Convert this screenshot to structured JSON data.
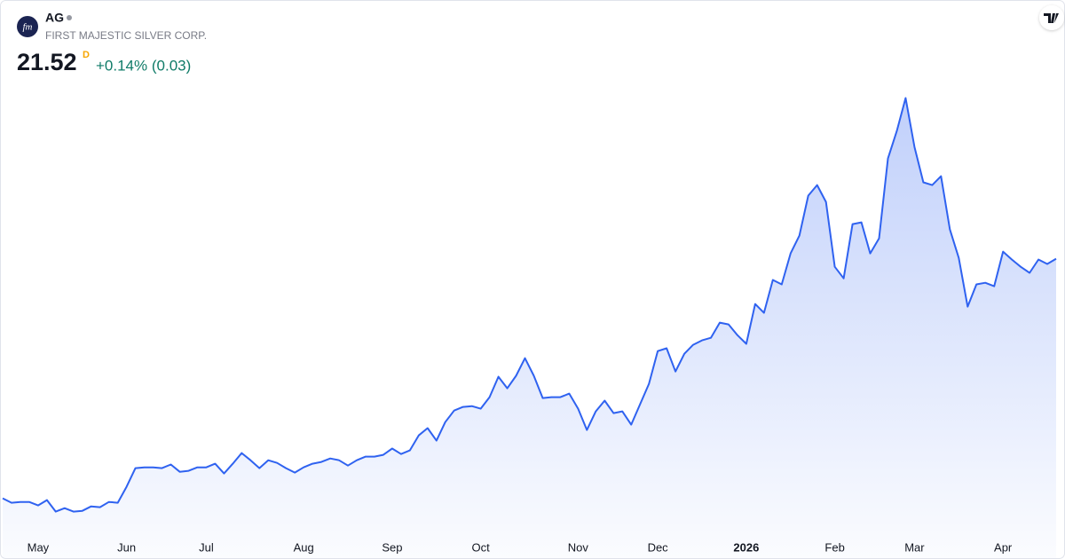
{
  "chart_data": {
    "type": "area",
    "title": "AG",
    "subtitle": "FIRST MAJESTIC SILVER CORP.",
    "logo": "fm",
    "last_price": 21.52,
    "interval": "D",
    "change": "+0.14% (0.03)",
    "color": "#2f62f0",
    "categories": [
      null,
      null,
      null,
      null,
      "May",
      null,
      null,
      null,
      null,
      null,
      null,
      null,
      null,
      null,
      "Jun",
      null,
      null,
      null,
      null,
      null,
      null,
      null,
      null,
      "Jul",
      null,
      null,
      null,
      null,
      null,
      null,
      null,
      null,
      null,
      null,
      "Aug",
      null,
      null,
      null,
      null,
      null,
      null,
      null,
      null,
      null,
      "Sep",
      null,
      null,
      null,
      null,
      null,
      null,
      null,
      null,
      null,
      "Oct",
      null,
      null,
      null,
      null,
      null,
      null,
      null,
      null,
      null,
      null,
      "Nov",
      null,
      null,
      null,
      null,
      null,
      null,
      null,
      null,
      "Dec",
      null,
      null,
      null,
      null,
      null,
      null,
      null,
      null,
      null,
      "2026",
      null,
      null,
      null,
      null,
      null,
      null,
      null,
      null,
      null,
      "Feb",
      null,
      null,
      null,
      null,
      null,
      null,
      null,
      null,
      "Mar",
      null,
      null,
      null,
      null,
      null,
      null,
      null,
      null,
      null,
      "Apr",
      null,
      null,
      null,
      null,
      null,
      null
    ],
    "values": [
      6.97,
      6.7,
      6.75,
      6.75,
      6.54,
      6.86,
      6.16,
      6.37,
      6.16,
      6.21,
      6.48,
      6.43,
      6.75,
      6.7,
      7.67,
      8.8,
      8.85,
      8.85,
      8.8,
      9.02,
      8.58,
      8.64,
      8.85,
      8.85,
      9.07,
      8.48,
      9.07,
      9.72,
      9.28,
      8.8,
      9.28,
      9.12,
      8.8,
      8.53,
      8.85,
      9.07,
      9.18,
      9.39,
      9.28,
      8.96,
      9.28,
      9.5,
      9.5,
      9.61,
      9.99,
      9.66,
      9.88,
      10.79,
      11.23,
      10.47,
      11.6,
      12.3,
      12.52,
      12.57,
      12.41,
      13.11,
      14.35,
      13.65,
      14.41,
      15.48,
      14.41,
      13.06,
      13.11,
      13.11,
      13.33,
      12.41,
      11.12,
      12.25,
      12.9,
      12.14,
      12.25,
      11.44,
      12.68,
      13.92,
      15.91,
      16.08,
      14.67,
      15.75,
      16.29,
      16.56,
      16.72,
      17.64,
      17.53,
      16.88,
      16.35,
      18.77,
      18.23,
      20.23,
      19.96,
      21.84,
      22.92,
      25.35,
      25.99,
      24.97,
      21.03,
      20.33,
      23.62,
      23.73,
      21.84,
      22.76,
      27.61,
      29.28,
      31.28,
      28.31,
      26.16,
      25.99,
      26.53,
      23.3,
      21.57,
      18.61,
      19.96,
      20.06,
      19.85,
      21.95,
      21.47,
      21.03,
      20.66,
      21.47,
      21.2,
      21.52
    ],
    "ylim": [
      4.9,
      34
    ]
  }
}
